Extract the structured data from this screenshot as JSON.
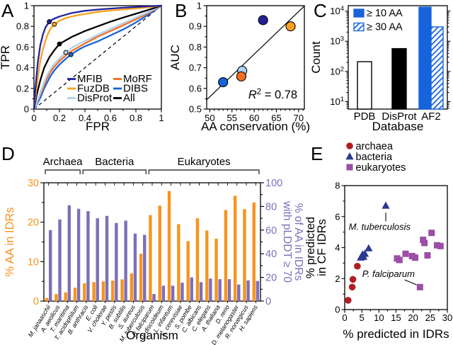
{
  "panels": {
    "A": {
      "label": "A"
    },
    "B": {
      "label": "B"
    },
    "C": {
      "label": "C"
    },
    "D": {
      "label": "D"
    },
    "E": {
      "label": "E"
    }
  },
  "chart_data": [
    {
      "id": "A",
      "type": "line",
      "name": "roc-curves",
      "xlabel": "FPR",
      "ylabel": "TPR",
      "xlim": [
        0,
        1
      ],
      "ylim": [
        0,
        1
      ],
      "xticks": [
        0,
        0.2,
        0.4,
        0.6,
        0.8,
        1
      ],
      "yticks": [
        0,
        0.2,
        0.4,
        0.6,
        0.8,
        1
      ],
      "xminor": [
        0.1,
        0.3,
        0.5,
        0.7,
        0.9
      ],
      "yminor": [
        0.1,
        0.3,
        0.5,
        0.7,
        0.9
      ],
      "diagonal_reference_line": true,
      "series": [
        {
          "name": "DIBS",
          "color": "#1763DB",
          "marker": [
            0.29,
            0.527
          ],
          "points": [
            [
              0,
              0
            ],
            [
              0.02,
              0.04
            ],
            [
              0.05,
              0.11
            ],
            [
              0.08,
              0.2
            ],
            [
              0.1,
              0.25
            ],
            [
              0.13,
              0.32
            ],
            [
              0.16,
              0.375
            ],
            [
              0.2,
              0.43
            ],
            [
              0.25,
              0.487
            ],
            [
              0.29,
              0.527
            ],
            [
              0.35,
              0.575
            ],
            [
              0.4,
              0.607
            ],
            [
              0.5,
              0.655
            ],
            [
              0.6,
              0.712
            ],
            [
              0.7,
              0.77
            ],
            [
              0.8,
              0.838
            ],
            [
              0.9,
              0.915
            ],
            [
              1,
              1
            ]
          ]
        },
        {
          "name": "MoRF",
          "color": "#F26F21",
          "points": [
            [
              0,
              0
            ],
            [
              0.02,
              0.06
            ],
            [
              0.05,
              0.14
            ],
            [
              0.08,
              0.23
            ],
            [
              0.1,
              0.29
            ],
            [
              0.13,
              0.36
            ],
            [
              0.16,
              0.41
            ],
            [
              0.2,
              0.465
            ],
            [
              0.25,
              0.52
            ],
            [
              0.3,
              0.565
            ],
            [
              0.35,
              0.6
            ],
            [
              0.4,
              0.635
            ],
            [
              0.5,
              0.7
            ],
            [
              0.6,
              0.755
            ],
            [
              0.7,
              0.81
            ],
            [
              0.8,
              0.868
            ],
            [
              0.9,
              0.93
            ],
            [
              1,
              1
            ]
          ]
        },
        {
          "name": "DisProt",
          "color": "#AFD2EF",
          "marker": [
            0.25,
            0.548
          ],
          "points": [
            [
              0,
              0
            ],
            [
              0.02,
              0.05
            ],
            [
              0.05,
              0.16
            ],
            [
              0.08,
              0.26
            ],
            [
              0.1,
              0.32
            ],
            [
              0.13,
              0.385
            ],
            [
              0.16,
              0.44
            ],
            [
              0.2,
              0.49
            ],
            [
              0.25,
              0.548
            ],
            [
              0.3,
              0.595
            ],
            [
              0.35,
              0.63
            ],
            [
              0.4,
              0.658
            ],
            [
              0.5,
              0.717
            ],
            [
              0.6,
              0.775
            ],
            [
              0.7,
              0.83
            ],
            [
              0.8,
              0.885
            ],
            [
              0.9,
              0.94
            ],
            [
              1,
              1
            ]
          ]
        },
        {
          "name": "All",
          "color": "#000000",
          "marker": [
            0.2,
            0.63
          ],
          "points": [
            [
              0,
              0
            ],
            [
              0.02,
              0.13
            ],
            [
              0.05,
              0.28
            ],
            [
              0.08,
              0.4
            ],
            [
              0.12,
              0.5
            ],
            [
              0.16,
              0.57
            ],
            [
              0.2,
              0.63
            ],
            [
              0.25,
              0.665
            ],
            [
              0.3,
              0.7
            ],
            [
              0.4,
              0.755
            ],
            [
              0.5,
              0.8
            ],
            [
              0.6,
              0.845
            ],
            [
              0.7,
              0.885
            ],
            [
              0.8,
              0.922
            ],
            [
              0.9,
              0.96
            ],
            [
              1,
              1
            ]
          ]
        },
        {
          "name": "FuzDB",
          "color": "#F9A11C",
          "marker": [
            0.16,
            0.82
          ],
          "points": [
            [
              0,
              0
            ],
            [
              0.01,
              0.1
            ],
            [
              0.03,
              0.3
            ],
            [
              0.05,
              0.47
            ],
            [
              0.07,
              0.58
            ],
            [
              0.1,
              0.7
            ],
            [
              0.13,
              0.78
            ],
            [
              0.16,
              0.82
            ],
            [
              0.2,
              0.855
            ],
            [
              0.25,
              0.88
            ],
            [
              0.3,
              0.897
            ],
            [
              0.4,
              0.92
            ],
            [
              0.5,
              0.94
            ],
            [
              0.6,
              0.953
            ],
            [
              0.7,
              0.963
            ],
            [
              0.8,
              0.973
            ],
            [
              0.9,
              0.985
            ],
            [
              1,
              1
            ]
          ]
        },
        {
          "name": "MFIB",
          "color": "#22229C",
          "marker": [
            0.12,
            0.845
          ],
          "points": [
            [
              0,
              0
            ],
            [
              0.01,
              0.18
            ],
            [
              0.02,
              0.32
            ],
            [
              0.03,
              0.45
            ],
            [
              0.05,
              0.62
            ],
            [
              0.07,
              0.72
            ],
            [
              0.09,
              0.79
            ],
            [
              0.12,
              0.845
            ],
            [
              0.15,
              0.87
            ],
            [
              0.2,
              0.895
            ],
            [
              0.3,
              0.93
            ],
            [
              0.4,
              0.95
            ],
            [
              0.5,
              0.962
            ],
            [
              0.6,
              0.972
            ],
            [
              0.7,
              0.98
            ],
            [
              0.8,
              0.987
            ],
            [
              0.9,
              0.994
            ],
            [
              1,
              1
            ]
          ]
        }
      ],
      "legend_columns": [
        [
          "MFIB",
          "FuzDB",
          "DisProt"
        ],
        [
          "MoRF",
          "DIBS",
          "All"
        ]
      ]
    },
    {
      "id": "B",
      "type": "scatter",
      "name": "auc-vs-conservation",
      "xlabel": "AA conservation (%)",
      "ylabel": "AUC",
      "xlim": [
        49.3,
        71.3
      ],
      "ylim": [
        0.5,
        1
      ],
      "xticks": [
        50,
        55,
        60,
        65,
        70
      ],
      "yticks": [
        0.5,
        0.6,
        0.7,
        0.8,
        0.9,
        1
      ],
      "yminor": [
        0.55,
        0.65,
        0.75,
        0.85,
        0.95
      ],
      "points": [
        {
          "name": "MFIB",
          "x": 62,
          "y": 0.93,
          "color": "#22229C"
        },
        {
          "name": "FuzDB",
          "x": 68.2,
          "y": 0.9,
          "color": "#F9A11C"
        },
        {
          "name": "DisProt",
          "x": 57.3,
          "y": 0.685,
          "color": "#AFD2EF"
        },
        {
          "name": "MoRF",
          "x": 57.1,
          "y": 0.658,
          "color": "#F26F21"
        },
        {
          "name": "DIBS",
          "x": 53,
          "y": 0.63,
          "color": "#1763DB"
        }
      ],
      "fit_line": {
        "x1": 49.3,
        "y1": 0.545,
        "x2": 71.3,
        "y2": 0.998
      },
      "r_squared": {
        "prefix": "R",
        "sup": "2",
        "suffix": " = 0.78"
      }
    },
    {
      "id": "C",
      "type": "bar",
      "name": "count-by-database",
      "yscale": "log",
      "xlabel": "Database",
      "ylabel": "Count",
      "categories": [
        "PDB",
        "DisProt",
        "AF2"
      ],
      "bars": [
        {
          "category": "PDB",
          "series": "≥ 10 AA",
          "value": 210,
          "fill": "#FFFFFF",
          "edge": "#000000",
          "hatch": false
        },
        {
          "category": "DisProt",
          "series": "≥ 10 AA",
          "value": 570,
          "fill": "#000000",
          "edge": "#000000",
          "hatch": false
        },
        {
          "category": "AF2",
          "series": "≥ 10 AA",
          "value": 13500,
          "fill": "#1763DB",
          "edge": "#1763DB",
          "hatch": false
        },
        {
          "category": "AF2",
          "series": "≥ 30 AA",
          "value": 3000,
          "fill": "#FFFFFF",
          "edge": "#1763DB",
          "hatch": true
        }
      ],
      "legend": [
        {
          "label": "≥ 10 AA",
          "hatch": false
        },
        {
          "label": "≥ 30 AA",
          "hatch": true
        }
      ],
      "accent_color": "#1763DB"
    },
    {
      "id": "D",
      "type": "bar",
      "name": "idr-content-by-organism",
      "xlabel": "Organism",
      "ylabel_left": "% AA in IDRs",
      "ylabel_right_line1": "% of AA in IDRs",
      "ylabel_right_line2": "with pLDDT ≥ 70",
      "ylim_left": [
        0,
        30
      ],
      "ylim_right": [
        0,
        100
      ],
      "yticks_left": [
        0,
        10,
        20,
        30
      ],
      "yminor_left": [
        5,
        15,
        25
      ],
      "yticks_right": [
        0,
        20,
        40,
        60,
        80,
        100
      ],
      "yminor_right": [
        10,
        30,
        50,
        70,
        90
      ],
      "color_left": "#F7941E",
      "color_right": "#7D6FB9",
      "groups": [
        {
          "label": "Archaea",
          "from": 0,
          "to": 3
        },
        {
          "label": "Bacteria",
          "from": 4,
          "to": 10
        },
        {
          "label": "Eukaryotes",
          "from": 11,
          "to": 22
        }
      ],
      "organisms": [
        {
          "name": "M. janaaschii",
          "aa_in_idrs_pct": 0.8,
          "plddt70_pct": 60
        },
        {
          "name": "A. aeolicus",
          "aa_in_idrs_pct": 1.8,
          "plddt70_pct": 69
        },
        {
          "name": "T. maritima",
          "aa_in_idrs_pct": 2.2,
          "plddt70_pct": 81
        },
        {
          "name": "T. acidophilum",
          "aa_in_idrs_pct": 3.4,
          "plddt70_pct": 78
        },
        {
          "name": "B. anthracis",
          "aa_in_idrs_pct": 4.5,
          "plddt70_pct": 76
        },
        {
          "name": "E. coli",
          "aa_in_idrs_pct": 4.8,
          "plddt70_pct": 70
        },
        {
          "name": "V. cholerae",
          "aa_in_idrs_pct": 5.0,
          "plddt70_pct": 72
        },
        {
          "name": "Y. pestis",
          "aa_in_idrs_pct": 5.2,
          "plddt70_pct": 66
        },
        {
          "name": "B. subtilis",
          "aa_in_idrs_pct": 5.5,
          "plddt70_pct": 68
        },
        {
          "name": "S. aureus",
          "aa_in_idrs_pct": 7.0,
          "plddt70_pct": 57
        },
        {
          "name": "M. tuberculosis",
          "aa_in_idrs_pct": 12.0,
          "plddt70_pct": 56
        },
        {
          "name": "P. falciparum",
          "aa_in_idrs_pct": 21.8,
          "plddt70_pct": 6
        },
        {
          "name": "D. discoideum",
          "aa_in_idrs_pct": 24.2,
          "plddt70_pct": 13
        },
        {
          "name": "L. infantum",
          "aa_in_idrs_pct": 27.9,
          "plddt70_pct": 13
        },
        {
          "name": "S. cerevisiae",
          "aa_in_idrs_pct": 19.5,
          "plddt70_pct": 15.5
        },
        {
          "name": "S. pombe",
          "aa_in_idrs_pct": 15.2,
          "plddt70_pct": 20
        },
        {
          "name": "C. albicans",
          "aa_in_idrs_pct": 21.0,
          "plddt70_pct": 16
        },
        {
          "name": "C. elegans",
          "aa_in_idrs_pct": 17.9,
          "plddt70_pct": 19
        },
        {
          "name": "A. thaliana",
          "aa_in_idrs_pct": 15.8,
          "plddt70_pct": 18.5
        },
        {
          "name": "D. rerio",
          "aa_in_idrs_pct": 23.1,
          "plddt70_pct": 18.5
        },
        {
          "name": "D. melanogaster",
          "aa_in_idrs_pct": 26.7,
          "plddt70_pct": 14
        },
        {
          "name": "R. norvegicus",
          "aa_in_idrs_pct": 23.3,
          "plddt70_pct": 17.5
        },
        {
          "name": "H. sapiens",
          "aa_in_idrs_pct": 25.0,
          "plddt70_pct": 17
        }
      ]
    },
    {
      "id": "E",
      "type": "scatter",
      "name": "cf-idrs-vs-idrs",
      "xlabel": "% predicted in IDRs",
      "ylabel_line1": "% predicted",
      "ylabel_line2": "in CF IDRs",
      "xlim": [
        0,
        30
      ],
      "ylim": [
        0,
        8
      ],
      "xticks": [
        0,
        5,
        10,
        15,
        20,
        25,
        30
      ],
      "xminor": [
        2.5,
        7.5,
        12.5,
        17.5,
        22.5,
        27.5
      ],
      "yticks": [
        0,
        2,
        4,
        6,
        8
      ],
      "yminor": [
        1,
        3,
        5,
        7
      ],
      "series": [
        {
          "name": "archaea",
          "marker": "circle",
          "color": "#B01E24",
          "points": [
            [
              1,
              0.6
            ],
            [
              2.2,
              1.45
            ],
            [
              2.4,
              1.95
            ],
            [
              3.7,
              2.8
            ]
          ]
        },
        {
          "name": "bacteria",
          "marker": "triangle",
          "color": "#2B3990",
          "points": [
            [
              4.7,
              3.35
            ],
            [
              5,
              3.45
            ],
            [
              5.2,
              3.55
            ],
            [
              5.5,
              3.4
            ],
            [
              5.9,
              3.6
            ],
            [
              7,
              3.95
            ],
            [
              12,
              6.7
            ]
          ]
        },
        {
          "name": "eukaryotes",
          "marker": "square",
          "color": "#9A4EA5",
          "points": [
            [
              15.3,
              3.3
            ],
            [
              16,
              3.2
            ],
            [
              17.8,
              3.6
            ],
            [
              19.7,
              3.45
            ],
            [
              20.6,
              3.35
            ],
            [
              22,
              1.45
            ],
            [
              22.9,
              4.5
            ],
            [
              23.3,
              4.3
            ],
            [
              24.2,
              3.5
            ],
            [
              25.4,
              4.95
            ],
            [
              27,
              4.15
            ],
            [
              28,
              4.1
            ]
          ]
        }
      ],
      "annotations": [
        {
          "text": "M. tuberculosis",
          "x": 10.2,
          "y": 5.15,
          "leader": [
            [
              12,
              6.25
            ],
            [
              12,
              5.7
            ]
          ]
        },
        {
          "text": "P. falciparum",
          "x": 12.8,
          "y": 2.1,
          "leader": [
            [
              17.5,
              1.92
            ],
            [
              21,
              1.6
            ]
          ]
        }
      ]
    }
  ]
}
